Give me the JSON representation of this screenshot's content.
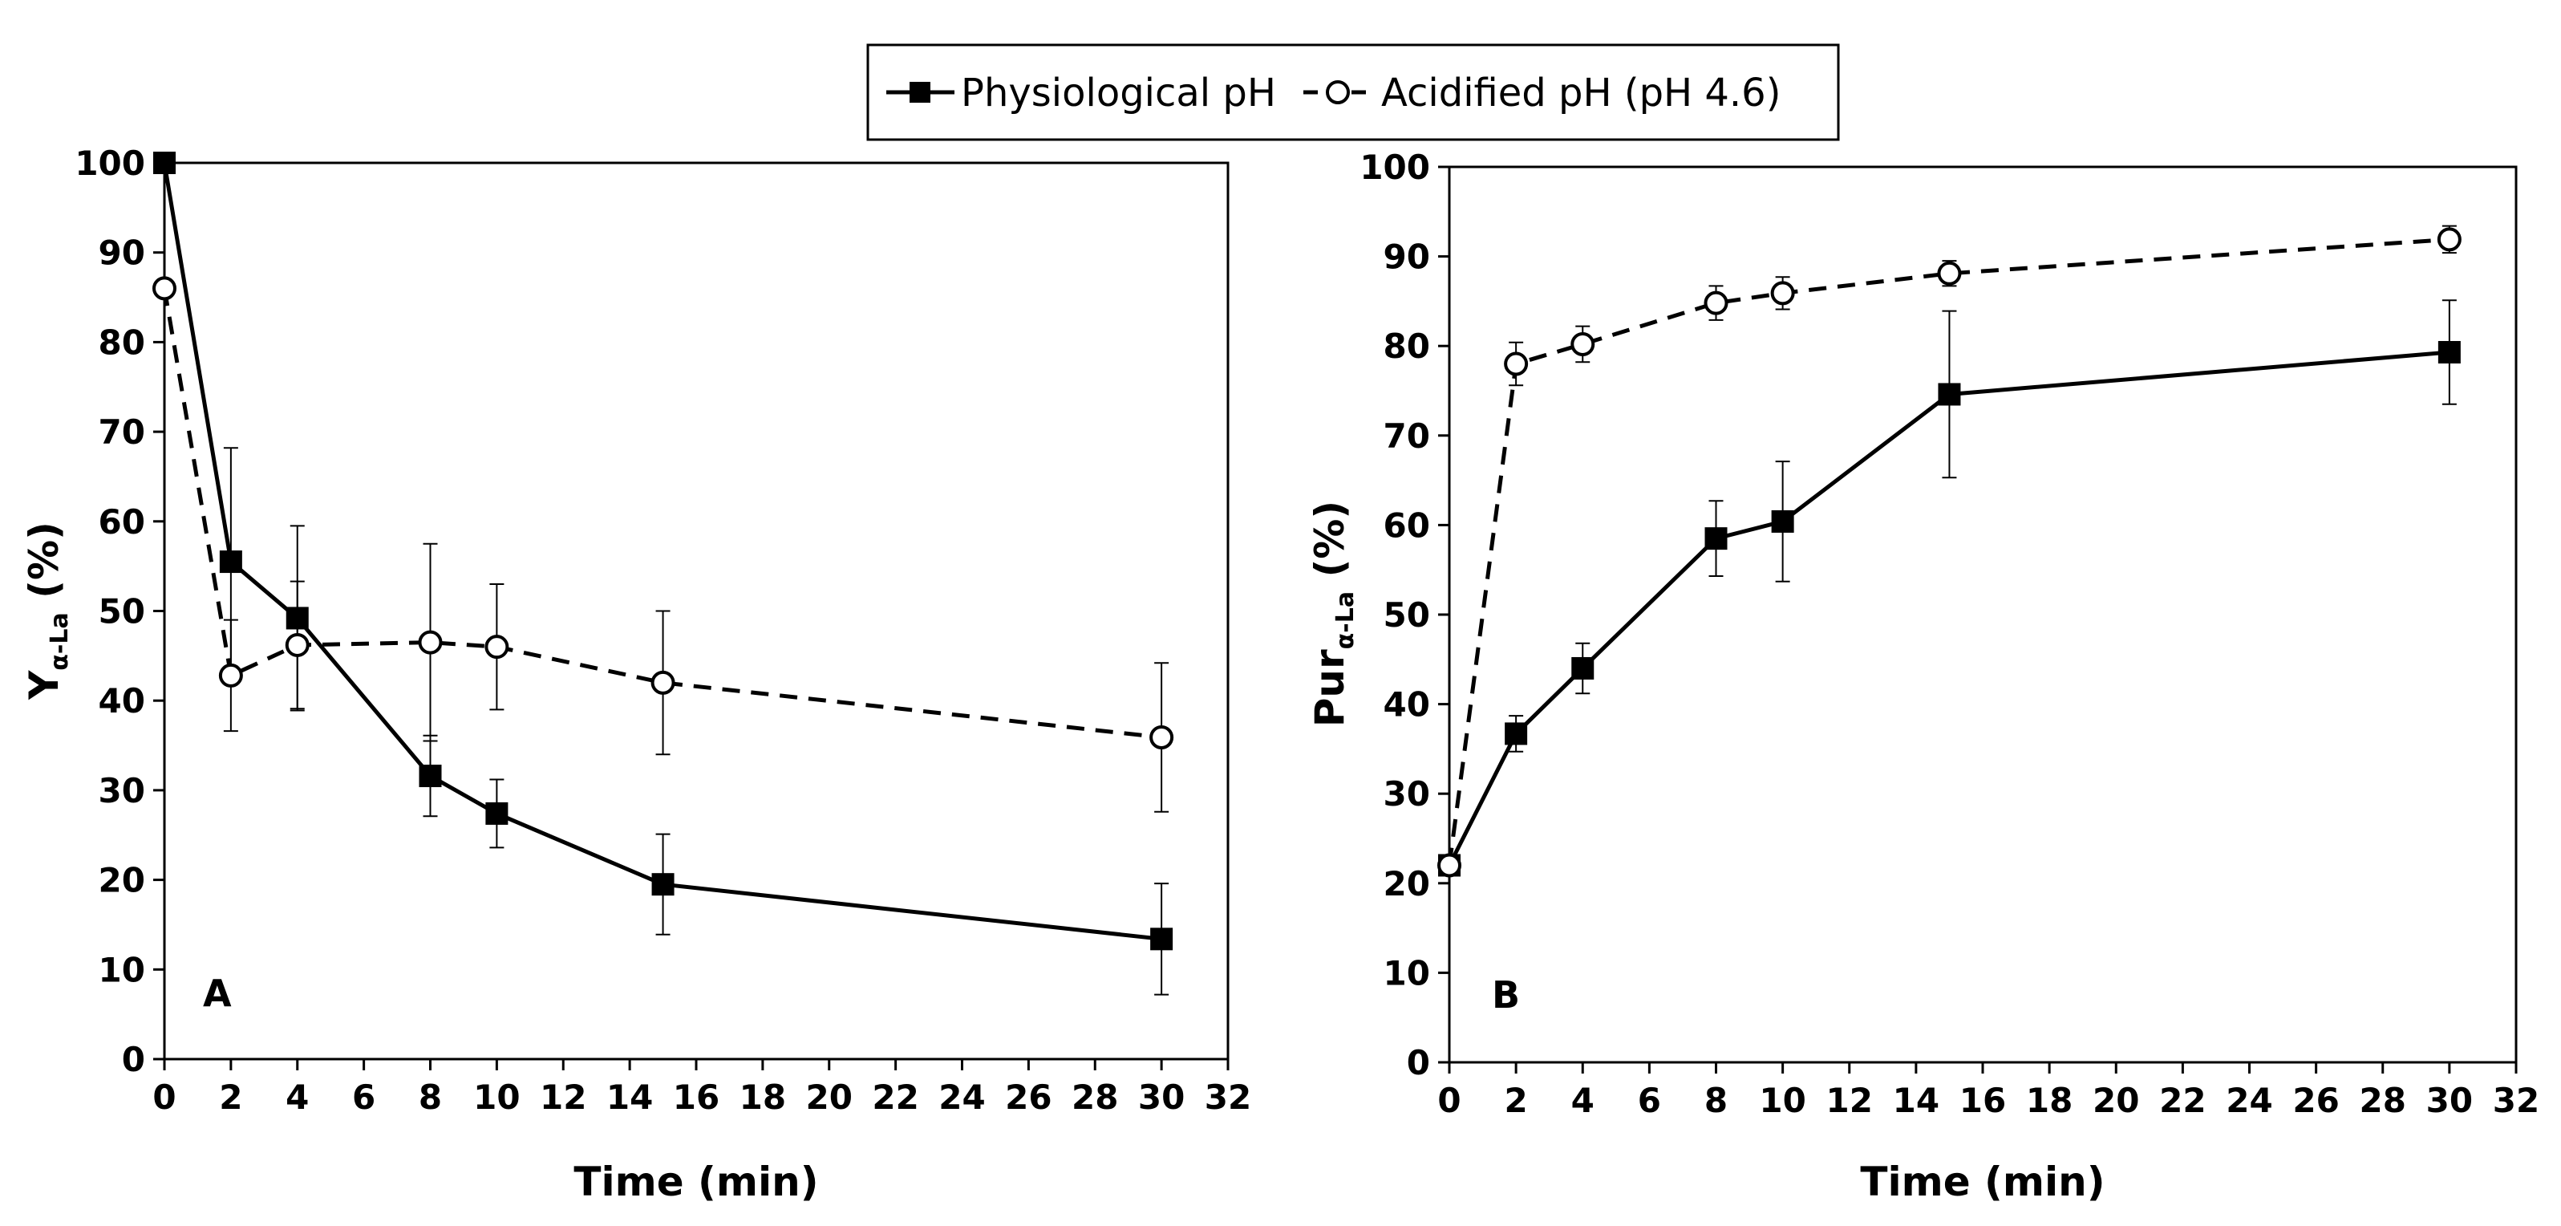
{
  "legend": {
    "series_1": "Physiological pH",
    "series_2": "Acidified pH (pH 4.6)"
  },
  "chart_data": [
    {
      "type": "line",
      "panel_label": "A",
      "xlabel": "Time (min)",
      "ylabel": {
        "main": "Y",
        "sub": "α-La",
        "suffix": " (%)"
      },
      "xlim": [
        0,
        32
      ],
      "ylim": [
        0,
        100
      ],
      "xticks": [
        0,
        2,
        4,
        6,
        8,
        10,
        12,
        14,
        16,
        18,
        20,
        22,
        24,
        26,
        28,
        30,
        32
      ],
      "yticks": [
        0,
        10,
        20,
        30,
        40,
        50,
        60,
        70,
        80,
        90,
        100
      ],
      "series": [
        {
          "name": "Physiological pH",
          "style": "solid",
          "marker": "filled-square",
          "x": [
            0,
            2,
            4,
            8,
            10,
            15,
            30
          ],
          "y": [
            100,
            55.5,
            49.2,
            31.6,
            27.4,
            19.5,
            13.4
          ],
          "error": [
            0,
            12.7,
            10.3,
            4.5,
            3.8,
            5.6,
            6.2
          ]
        },
        {
          "name": "Acidified pH (pH 4.6)",
          "style": "dashed",
          "marker": "open-circle",
          "x": [
            0,
            2,
            4,
            8,
            10,
            15,
            30
          ],
          "y": [
            86,
            42.8,
            46.2,
            46.5,
            46.0,
            42.0,
            35.9
          ],
          "error": [
            0,
            6.2,
            7.1,
            11.0,
            7.0,
            8.0,
            8.3
          ]
        }
      ]
    },
    {
      "type": "line",
      "panel_label": "B",
      "xlabel": "Time (min)",
      "ylabel": {
        "main": "Pur",
        "sub": "α-La",
        "suffix": " (%)"
      },
      "xlim": [
        0,
        32
      ],
      "ylim": [
        0,
        100
      ],
      "xticks": [
        0,
        2,
        4,
        6,
        8,
        10,
        12,
        14,
        16,
        18,
        20,
        22,
        24,
        26,
        28,
        30,
        32
      ],
      "yticks": [
        0,
        10,
        20,
        30,
        40,
        50,
        60,
        70,
        80,
        90,
        100
      ],
      "series": [
        {
          "name": "Physiological pH",
          "style": "solid",
          "marker": "filled-square",
          "x": [
            0,
            2,
            4,
            8,
            10,
            15,
            30
          ],
          "y": [
            22,
            36.7,
            44.0,
            58.5,
            60.4,
            74.6,
            79.3
          ],
          "error": [
            0,
            2.0,
            2.8,
            4.2,
            6.7,
            9.3,
            5.8
          ]
        },
        {
          "name": "Acidified pH (pH 4.6)",
          "style": "dashed",
          "marker": "open-circle",
          "x": [
            0,
            2,
            4,
            8,
            10,
            15,
            30
          ],
          "y": [
            22,
            78.0,
            80.2,
            84.8,
            85.9,
            88.1,
            91.9
          ],
          "error": [
            0,
            2.4,
            2.0,
            1.9,
            1.8,
            1.4,
            1.5
          ]
        }
      ]
    }
  ]
}
